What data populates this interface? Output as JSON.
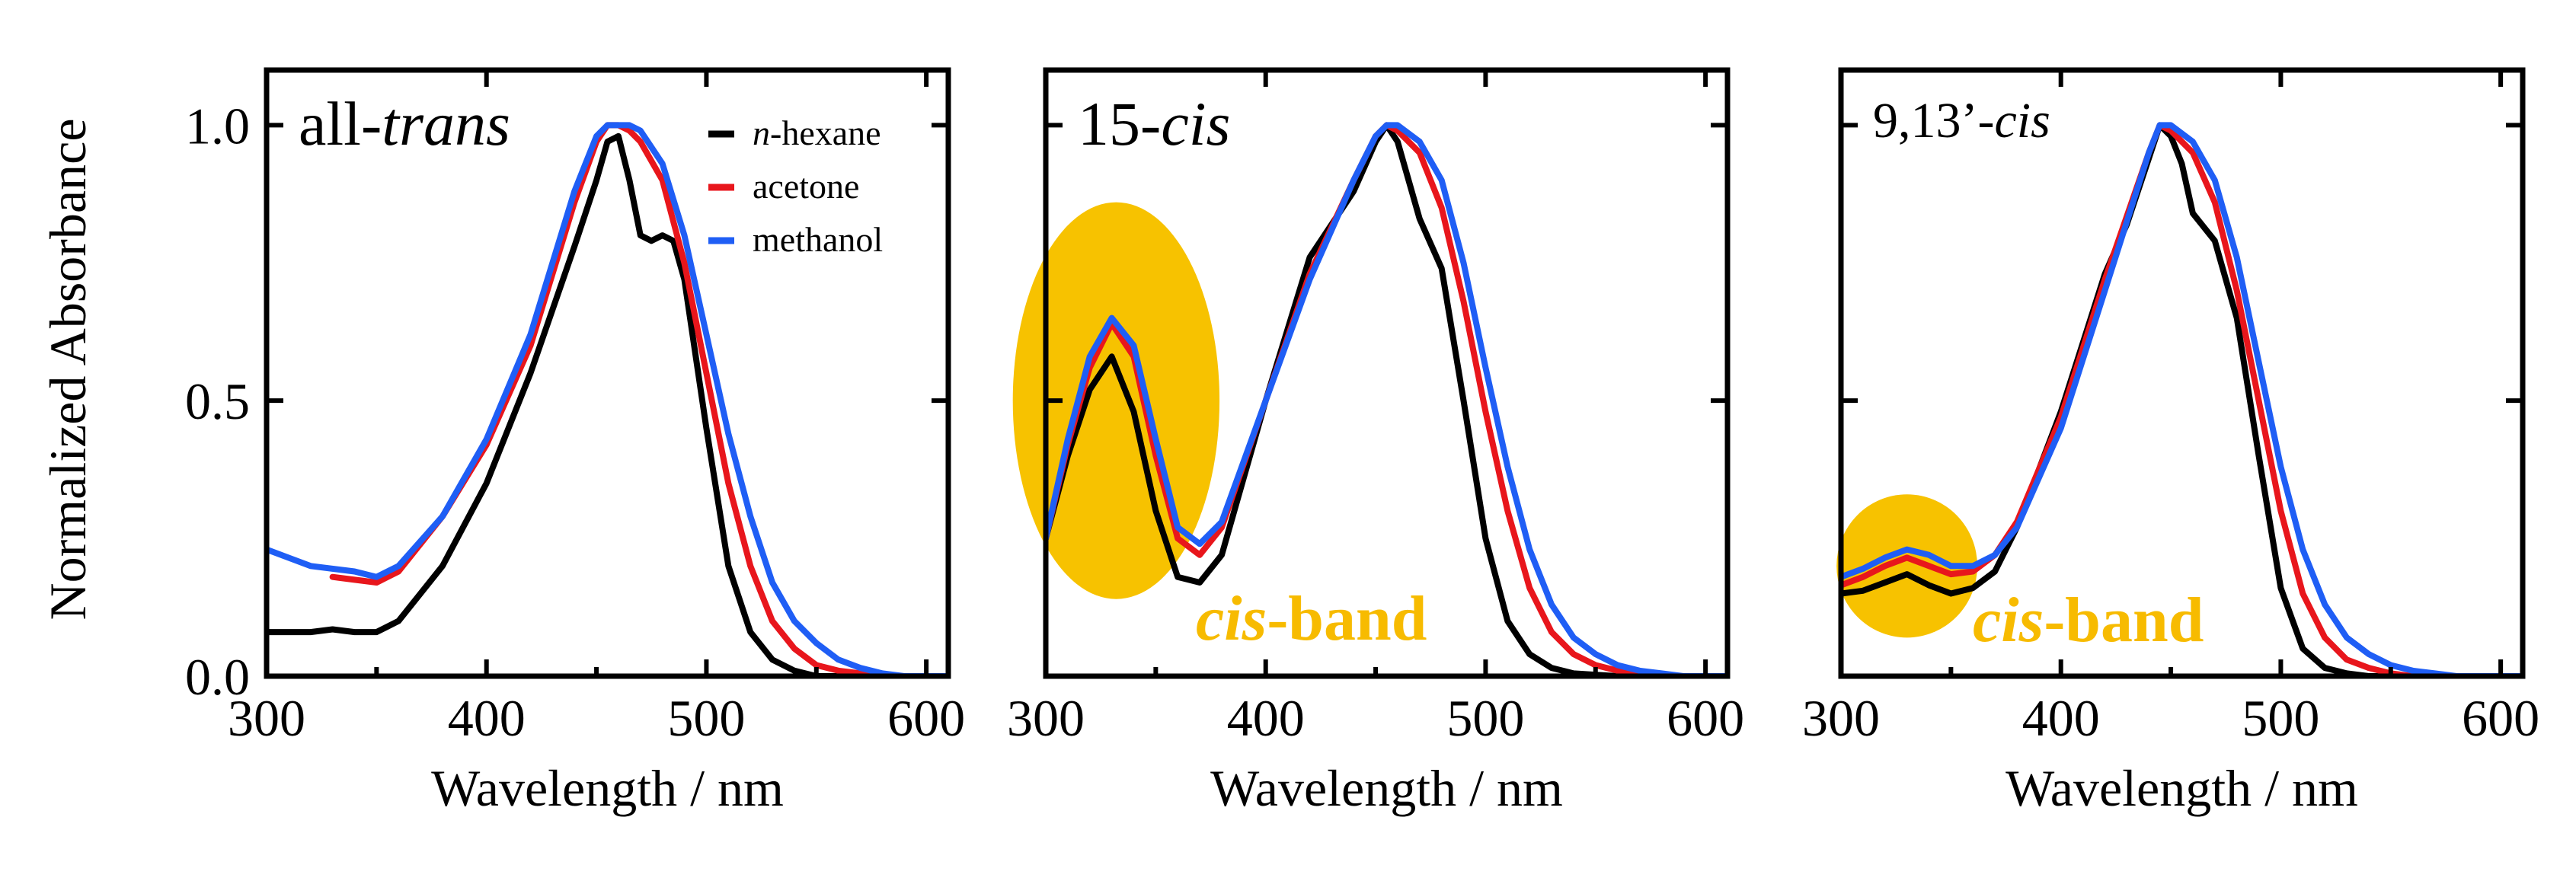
{
  "figure": {
    "ylabel": "Normalized Absorbance",
    "xlabel": "Wavelength / nm",
    "colors": {
      "n-hexane": "#000000",
      "acetone": "#e8161c",
      "methanol": "#1f5ef5",
      "highlight": "#f7c200",
      "highlight_text": "#f7bb00"
    }
  },
  "legend": [
    {
      "prefix": "n",
      "suffix": "-hexane",
      "color": "#000000"
    },
    {
      "prefix": "",
      "suffix": "acetone",
      "color": "#e8161c"
    },
    {
      "prefix": "",
      "suffix": "methanol",
      "color": "#1f5ef5"
    }
  ],
  "chart_data": [
    {
      "type": "line",
      "title_prefix": "all-",
      "title_italic": "trans",
      "xlabel": "Wavelength / nm",
      "ylabel": "Normalized Absorbance",
      "xlim": [
        300,
        610
      ],
      "ylim": [
        0,
        1.1
      ],
      "xticks": [
        "300",
        "400",
        "500",
        "600"
      ],
      "yticks": [
        "0.0",
        "0.5",
        "1.0"
      ],
      "cis_band": null,
      "series": [
        {
          "name": "n-hexane",
          "x": [
            300,
            320,
            330,
            340,
            350,
            360,
            380,
            400,
            420,
            440,
            450,
            455,
            460,
            465,
            470,
            475,
            480,
            485,
            490,
            500,
            510,
            520,
            530,
            540,
            550,
            570,
            610
          ],
          "y": [
            0.08,
            0.08,
            0.085,
            0.08,
            0.08,
            0.1,
            0.2,
            0.35,
            0.55,
            0.78,
            0.9,
            0.97,
            0.98,
            0.9,
            0.8,
            0.79,
            0.8,
            0.79,
            0.72,
            0.45,
            0.2,
            0.08,
            0.03,
            0.01,
            0,
            0,
            0
          ]
        },
        {
          "name": "acetone",
          "x": [
            330,
            340,
            350,
            360,
            380,
            400,
            420,
            440,
            450,
            455,
            460,
            465,
            470,
            480,
            490,
            500,
            510,
            520,
            530,
            540,
            550,
            560,
            570,
            580,
            610
          ],
          "y": [
            0.18,
            0.175,
            0.17,
            0.19,
            0.29,
            0.42,
            0.6,
            0.86,
            0.97,
            1.0,
            1.0,
            0.99,
            0.97,
            0.9,
            0.75,
            0.55,
            0.35,
            0.2,
            0.1,
            0.05,
            0.02,
            0.01,
            0.005,
            0,
            0
          ]
        },
        {
          "name": "methanol",
          "x": [
            300,
            320,
            340,
            350,
            360,
            380,
            400,
            420,
            440,
            450,
            455,
            460,
            465,
            470,
            480,
            490,
            500,
            510,
            520,
            530,
            540,
            550,
            560,
            570,
            580,
            590,
            610
          ],
          "y": [
            0.23,
            0.2,
            0.19,
            0.18,
            0.2,
            0.29,
            0.43,
            0.62,
            0.88,
            0.98,
            1.0,
            1.0,
            1.0,
            0.99,
            0.93,
            0.8,
            0.62,
            0.44,
            0.29,
            0.17,
            0.1,
            0.06,
            0.03,
            0.015,
            0.005,
            0,
            0
          ]
        }
      ]
    },
    {
      "type": "line",
      "title_prefix": "15-",
      "title_italic": "cis",
      "xlabel": "Wavelength / nm",
      "xlim": [
        300,
        610
      ],
      "ylim": [
        0,
        1.1
      ],
      "xticks": [
        "300",
        "400",
        "500",
        "600"
      ],
      "yticks": [],
      "cis_band": {
        "label_italic": "cis",
        "label_rest": "-band",
        "center_nm": 332,
        "center_abs": 0.5,
        "rx_nm": 47,
        "ry_abs": 0.36
      },
      "series": [
        {
          "name": "n-hexane",
          "x": [
            300,
            310,
            320,
            330,
            340,
            350,
            360,
            370,
            380,
            400,
            420,
            440,
            450,
            455,
            460,
            470,
            480,
            490,
            500,
            510,
            520,
            530,
            540,
            560,
            610
          ],
          "y": [
            0.25,
            0.4,
            0.52,
            0.58,
            0.48,
            0.3,
            0.18,
            0.17,
            0.22,
            0.5,
            0.76,
            0.88,
            0.97,
            1.0,
            0.97,
            0.83,
            0.74,
            0.5,
            0.25,
            0.1,
            0.04,
            0.015,
            0.005,
            0,
            0
          ]
        },
        {
          "name": "acetone",
          "x": [
            300,
            310,
            320,
            330,
            340,
            350,
            360,
            370,
            380,
            400,
            420,
            440,
            450,
            455,
            460,
            470,
            480,
            490,
            500,
            510,
            520,
            530,
            540,
            550,
            560,
            580,
            610
          ],
          "y": [
            0.25,
            0.42,
            0.56,
            0.64,
            0.58,
            0.4,
            0.25,
            0.22,
            0.27,
            0.5,
            0.73,
            0.9,
            0.98,
            1.0,
            0.99,
            0.95,
            0.85,
            0.68,
            0.48,
            0.3,
            0.16,
            0.08,
            0.04,
            0.02,
            0.01,
            0,
            0
          ]
        },
        {
          "name": "methanol",
          "x": [
            300,
            310,
            320,
            330,
            340,
            350,
            360,
            370,
            380,
            400,
            420,
            440,
            450,
            455,
            460,
            470,
            480,
            490,
            500,
            510,
            520,
            530,
            540,
            550,
            560,
            570,
            580,
            590,
            610
          ],
          "y": [
            0.25,
            0.43,
            0.58,
            0.65,
            0.6,
            0.43,
            0.27,
            0.24,
            0.28,
            0.5,
            0.72,
            0.9,
            0.98,
            1.0,
            1.0,
            0.97,
            0.9,
            0.75,
            0.56,
            0.38,
            0.23,
            0.13,
            0.07,
            0.04,
            0.02,
            0.01,
            0.005,
            0,
            0
          ]
        }
      ]
    },
    {
      "type": "line",
      "title_prefix": "9,13’-",
      "title_italic": "cis",
      "xlabel": "Wavelength / nm",
      "xlim": [
        300,
        610
      ],
      "ylim": [
        0,
        1.1
      ],
      "xticks": [
        "300",
        "400",
        "500",
        "600"
      ],
      "yticks": [],
      "cis_band": {
        "label_italic": "cis",
        "label_rest": "-band",
        "center_nm": 330,
        "center_abs": 0.2,
        "rx_nm": 32,
        "ry_abs": 0.13
      },
      "series": [
        {
          "name": "n-hexane",
          "x": [
            300,
            310,
            320,
            330,
            340,
            350,
            360,
            370,
            380,
            400,
            420,
            430,
            440,
            445,
            450,
            455,
            460,
            470,
            480,
            490,
            500,
            510,
            520,
            530,
            540,
            560,
            610
          ],
          "y": [
            0.15,
            0.155,
            0.17,
            0.185,
            0.165,
            0.15,
            0.16,
            0.19,
            0.27,
            0.48,
            0.73,
            0.82,
            0.94,
            1.0,
            0.98,
            0.93,
            0.84,
            0.79,
            0.65,
            0.4,
            0.16,
            0.05,
            0.015,
            0.005,
            0,
            0,
            0
          ]
        },
        {
          "name": "acetone",
          "x": [
            300,
            310,
            320,
            330,
            340,
            350,
            360,
            370,
            380,
            400,
            420,
            440,
            445,
            450,
            460,
            470,
            480,
            490,
            500,
            510,
            520,
            530,
            540,
            550,
            560,
            580,
            610
          ],
          "y": [
            0.165,
            0.18,
            0.2,
            0.215,
            0.2,
            0.185,
            0.19,
            0.22,
            0.28,
            0.47,
            0.72,
            0.95,
            1.0,
            0.99,
            0.95,
            0.86,
            0.7,
            0.5,
            0.3,
            0.15,
            0.07,
            0.03,
            0.015,
            0.005,
            0,
            0,
            0
          ]
        },
        {
          "name": "methanol",
          "x": [
            300,
            310,
            320,
            330,
            340,
            350,
            360,
            370,
            380,
            400,
            420,
            440,
            445,
            450,
            460,
            470,
            480,
            490,
            500,
            510,
            520,
            530,
            540,
            550,
            560,
            570,
            580,
            600,
            610
          ],
          "y": [
            0.18,
            0.195,
            0.215,
            0.23,
            0.22,
            0.2,
            0.2,
            0.22,
            0.27,
            0.45,
            0.7,
            0.95,
            1.0,
            1.0,
            0.97,
            0.9,
            0.76,
            0.57,
            0.38,
            0.23,
            0.13,
            0.07,
            0.04,
            0.02,
            0.01,
            0.005,
            0,
            0,
            0
          ]
        }
      ]
    }
  ]
}
